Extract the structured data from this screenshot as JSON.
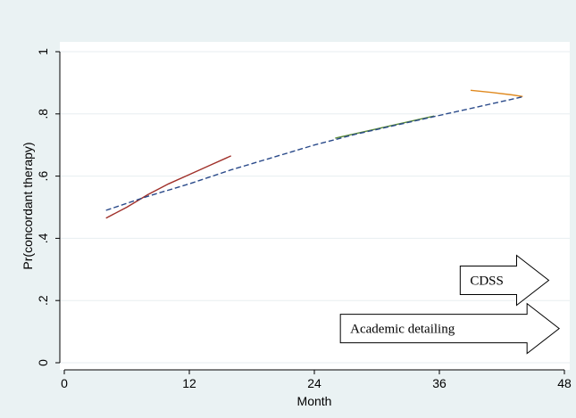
{
  "chart_data": {
    "type": "line",
    "title": "",
    "xlabel": "Month",
    "ylabel": "Pr(concordant therapy)",
    "xlim": [
      0,
      48
    ],
    "ylim": [
      0,
      1
    ],
    "x_ticks": [
      0,
      12,
      24,
      36,
      48
    ],
    "y_ticks": [
      0,
      0.2,
      0.4,
      0.6,
      0.8,
      1
    ],
    "x_tick_labels": [
      "0",
      "12",
      "24",
      "36",
      "48"
    ],
    "y_tick_labels": [
      "0",
      ".2",
      ".4",
      ".6",
      ".8",
      "1"
    ],
    "grid": "horizontal",
    "series": [
      {
        "color": "#a0302a",
        "style": "solid",
        "x": [
          4,
          6,
          8,
          10,
          12,
          14,
          16
        ],
        "y": [
          0.465,
          0.5,
          0.54,
          0.575,
          0.605,
          0.635,
          0.665
        ]
      },
      {
        "color": "#5a8a3a",
        "style": "solid",
        "x": [
          26,
          28,
          30,
          32,
          34,
          35.5
        ],
        "y": [
          0.722,
          0.737,
          0.752,
          0.767,
          0.782,
          0.793
        ]
      },
      {
        "color": "#e08a20",
        "style": "solid",
        "x": [
          39,
          41,
          43,
          44
        ],
        "y": [
          0.876,
          0.869,
          0.861,
          0.856
        ]
      },
      {
        "color": "#2a4a8a",
        "style": "dashed",
        "x": [
          4,
          8,
          12,
          16,
          20,
          24,
          28,
          32,
          36,
          40,
          44
        ],
        "y": [
          0.49,
          0.535,
          0.575,
          0.62,
          0.66,
          0.7,
          0.735,
          0.765,
          0.795,
          0.825,
          0.855
        ]
      }
    ],
    "annotations": [
      {
        "text": "CDSS",
        "x_start": 38,
        "x_end": 46.5,
        "y": 0.265
      },
      {
        "text": "Academic detailing",
        "x_start": 26.5,
        "x_end": 47.5,
        "y": 0.11
      }
    ]
  }
}
